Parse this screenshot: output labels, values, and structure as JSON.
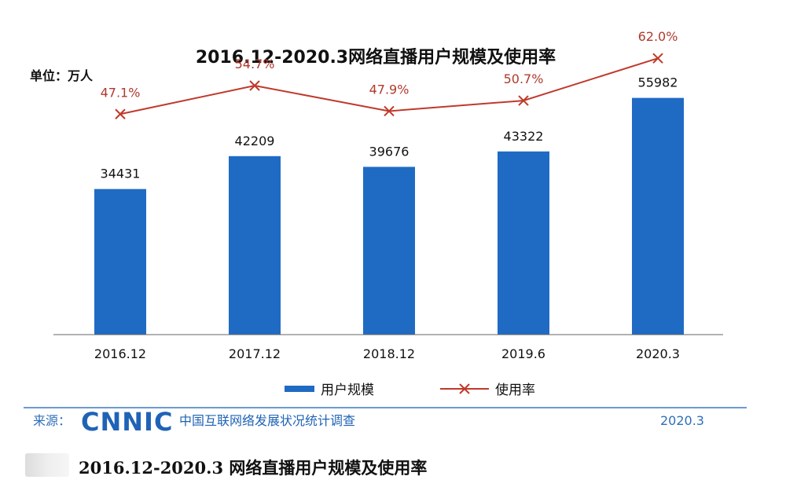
{
  "chart_data": {
    "type": "bar",
    "title": "2016.12-2020.3网络直播用户规模及使用率",
    "unit_label": "单位：万人",
    "categories": [
      "2016.12",
      "2017.12",
      "2018.12",
      "2019.6",
      "2020.3"
    ],
    "series": [
      {
        "name": "用户规模",
        "type": "bar",
        "values": [
          34431,
          42209,
          39676,
          43322,
          55982
        ],
        "labels": [
          "34431",
          "42209",
          "39676",
          "43322",
          "55982"
        ],
        "color": "#1f6bc4"
      },
      {
        "name": "使用率",
        "type": "line",
        "values": [
          47.1,
          54.7,
          47.9,
          50.7,
          62.0
        ],
        "labels": [
          "47.1%",
          "54.7%",
          "47.9%",
          "50.7%",
          "62.0%"
        ],
        "color": "#c0392b"
      }
    ],
    "ylim": [
      0,
      60000
    ],
    "rate_ylim": [
      0,
      70
    ],
    "xlabel": "",
    "ylabel": "",
    "grid": false,
    "legend_position": "bottom"
  },
  "source": {
    "label": "来源：",
    "logo": "CNNIC",
    "org": "中国互联网络发展状况统计调查",
    "date": "2020.3"
  },
  "caption": {
    "text": "2016.12-2020.3 网络直播用户规模及使用率"
  }
}
